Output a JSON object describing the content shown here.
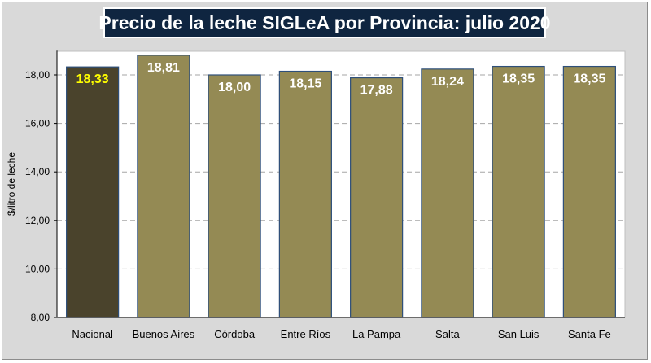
{
  "chart_data": {
    "type": "bar",
    "title": "Precio de la leche SIGLeA por Provincia: julio 2020",
    "ylabel": "$/litro de leche",
    "xlabel": "",
    "ylim": [
      8,
      19
    ],
    "yticks": [
      8,
      10,
      12,
      14,
      16,
      18
    ],
    "ytick_labels": [
      "8,00",
      "10,00",
      "12,00",
      "14,00",
      "16,00",
      "18,00"
    ],
    "grid": true,
    "categories": [
      "Nacional",
      "Buenos Aires",
      "Córdoba",
      "Entre Ríos",
      "La Pampa",
      "Salta",
      "San Luis",
      "Santa Fe"
    ],
    "values": [
      18.33,
      18.81,
      18.0,
      18.15,
      17.88,
      18.24,
      18.35,
      18.35
    ],
    "value_labels": [
      "18,33",
      "18,81",
      "18,00",
      "18,15",
      "17,88",
      "18,24",
      "18,35",
      "18,35"
    ],
    "colors": {
      "highlight_bar": "#4a432c",
      "bar": "#948a54",
      "bar_border": "#2e4f7a",
      "highlight_label": "#ffff00",
      "label": "#ffffff"
    }
  }
}
